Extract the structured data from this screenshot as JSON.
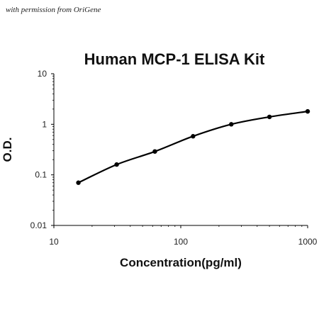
{
  "watermark": "with permission from OriGene",
  "chart_data": {
    "type": "scatter",
    "title": "Human MCP-1 ELISA Kit",
    "xlabel": "Concentration(pg/ml)",
    "ylabel": "O.D.",
    "x_scale": "log",
    "y_scale": "log",
    "xlim": [
      10,
      1000
    ],
    "ylim": [
      0.01,
      10
    ],
    "x_tick_labels": [
      "10",
      "100",
      "1000"
    ],
    "y_tick_labels": [
      "0.01",
      "0.1",
      "1",
      "10"
    ],
    "grid": false,
    "legend": "none",
    "colors": {
      "series": "#000000",
      "axis": "#000000"
    },
    "series": [
      {
        "x": [
          15.6,
          31.25,
          62.5,
          125,
          250,
          500,
          1000
        ],
        "y": [
          0.07,
          0.16,
          0.29,
          0.58,
          1.0,
          1.4,
          1.8
        ],
        "fit_curve": true
      }
    ]
  }
}
